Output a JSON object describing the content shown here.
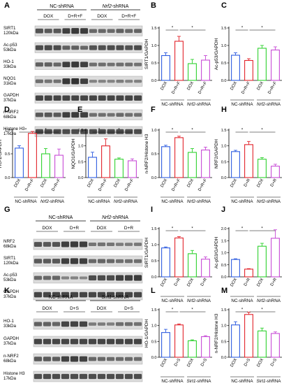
{
  "figure": {
    "colors": {
      "ctrl": "#2f5de0",
      "treat": "#e2222a",
      "ctrlKD": "#2ed12e",
      "treatKD": "#c74ad6",
      "axis": "#000000",
      "band": "#1a1a1a"
    },
    "blots": [
      {
        "panel": "A",
        "groups": [
          {
            "label": "NC-shRNA",
            "conds": [
              "DOX",
              "D+R+F"
            ]
          },
          {
            "label": "Nrf2-shRNA",
            "conds": [
              "DOX",
              "D+R+F"
            ]
          }
        ],
        "rows": [
          {
            "protein": "SIRT1",
            "size": "120kDa",
            "levels": [
              0.65,
              0.6,
              0.62,
              0.8,
              0.85,
              0.82,
              0.5,
              0.5,
              0.48,
              0.55,
              0.5,
              0.52
            ]
          },
          {
            "protein": "Ac-p53",
            "size": "53kDa",
            "levels": [
              0.7,
              0.72,
              0.7,
              0.55,
              0.55,
              0.5,
              0.65,
              0.68,
              0.7,
              0.7,
              0.66,
              0.7
            ]
          },
          {
            "protein": "HO-1",
            "size": "33kDa",
            "levels": [
              0.55,
              0.55,
              0.5,
              0.8,
              0.85,
              0.8,
              0.45,
              0.45,
              0.42,
              0.45,
              0.45,
              0.42
            ]
          },
          {
            "protein": "NQO1",
            "size": "31kDa",
            "levels": [
              0.45,
              0.4,
              0.42,
              0.85,
              0.9,
              0.8,
              0.3,
              0.3,
              0.3,
              0.35,
              0.3,
              0.32
            ]
          },
          {
            "protein": "GAPDH",
            "size": "37kDa",
            "levels": [
              0.75,
              0.75,
              0.75,
              0.75,
              0.75,
              0.75,
              0.75,
              0.75,
              0.75,
              0.75,
              0.75,
              0.75
            ]
          },
          {
            "protein": "n-NRF2",
            "size": "68kDa",
            "levels": [
              0.6,
              0.62,
              0.6,
              0.8,
              0.82,
              0.8,
              0.45,
              0.45,
              0.42,
              0.48,
              0.45,
              0.45
            ]
          },
          {
            "protein": "Histone H3",
            "size": "17kDa",
            "levels": [
              0.7,
              0.7,
              0.7,
              0.7,
              0.7,
              0.7,
              0.7,
              0.7,
              0.7,
              0.7,
              0.7,
              0.7
            ]
          }
        ]
      },
      {
        "panel": "G",
        "groups": [
          {
            "label": "NC-shRNA",
            "conds": [
              "DOX",
              "D+R"
            ]
          },
          {
            "label": "Nrf2-shRNA",
            "conds": [
              "DOX",
              "D+R"
            ]
          }
        ],
        "rows": [
          {
            "protein": "NRF2",
            "size": "68kDa",
            "levels": [
              0.65,
              0.62,
              0.65,
              0.8,
              0.82,
              0.8,
              0.4,
              0.42,
              0.4,
              0.35,
              0.35,
              0.38
            ]
          },
          {
            "protein": "SIRT1",
            "size": "120kDa",
            "levels": [
              0.6,
              0.6,
              0.62,
              0.8,
              0.82,
              0.8,
              0.5,
              0.52,
              0.5,
              0.45,
              0.45,
              0.45
            ]
          },
          {
            "protein": "Ac-p53",
            "size": "53kDa",
            "levels": [
              0.5,
              0.5,
              0.52,
              0.3,
              0.3,
              0.28,
              0.7,
              0.72,
              0.72,
              0.8,
              0.8,
              0.82
            ]
          },
          {
            "protein": "GAPDH",
            "size": "37kDa",
            "levels": [
              0.75,
              0.75,
              0.75,
              0.75,
              0.75,
              0.75,
              0.75,
              0.75,
              0.75,
              0.75,
              0.75,
              0.75
            ]
          }
        ]
      },
      {
        "panel": "K",
        "groups": [
          {
            "label": "NC-shRNA",
            "conds": [
              "DOX",
              "D+S"
            ]
          },
          {
            "label": "Sirt1-shRNA",
            "conds": [
              "DOX",
              "D+S"
            ]
          }
        ],
        "rows": [
          {
            "protein": "HO-1",
            "size": "33kDa",
            "levels": [
              0.55,
              0.55,
              0.52,
              0.75,
              0.78,
              0.75,
              0.35,
              0.35,
              0.32,
              0.45,
              0.45,
              0.42
            ]
          },
          {
            "protein": "GAPDH",
            "size": "37kDa",
            "levels": [
              0.75,
              0.75,
              0.75,
              0.75,
              0.75,
              0.75,
              0.75,
              0.75,
              0.75,
              0.75,
              0.75,
              0.75
            ]
          },
          {
            "protein": "n-NRF2",
            "size": "68kDa",
            "levels": [
              0.6,
              0.6,
              0.58,
              0.78,
              0.8,
              0.78,
              0.5,
              0.5,
              0.48,
              0.48,
              0.48,
              0.46
            ]
          },
          {
            "protein": "Histone H3",
            "size": "17kDa",
            "levels": [
              0.7,
              0.7,
              0.7,
              0.7,
              0.7,
              0.7,
              0.7,
              0.7,
              0.7,
              0.7,
              0.7,
              0.7
            ]
          }
        ]
      }
    ]
  },
  "chart_data": [
    {
      "panel": "B",
      "type": "bar",
      "ylabel": "SIRT1/GAPDH",
      "ylim": [
        0,
        1.5
      ],
      "yticks": [
        0.0,
        0.5,
        1.0,
        1.5
      ],
      "categories": [
        "DOX",
        "D+R+F",
        "DOX",
        "D+R+F"
      ],
      "values": [
        0.71,
        1.12,
        0.48,
        0.58
      ],
      "errors": [
        0.08,
        0.14,
        0.12,
        0.13
      ],
      "groups": [
        "NC-shRNA",
        "Nrf2-shRNA"
      ],
      "sig": [
        "*",
        "*"
      ]
    },
    {
      "panel": "C",
      "type": "bar",
      "ylabel": "Ac-p53/GAPDH",
      "ylim": [
        0,
        1.5
      ],
      "yticks": [
        0.0,
        0.5,
        1.0,
        1.5
      ],
      "categories": [
        "DOX",
        "D+R+F",
        "DOX",
        "D+R+F"
      ],
      "values": [
        0.72,
        0.57,
        0.92,
        0.87
      ],
      "errors": [
        0.07,
        0.05,
        0.08,
        0.09
      ],
      "groups": [
        "NC-shRNA",
        "Nrf2-shRNA"
      ],
      "sig": [
        "*",
        "*"
      ]
    },
    {
      "panel": "D",
      "type": "bar",
      "ylabel": "HO-1/GAPDH",
      "ylim": [
        0,
        1.0
      ],
      "yticks": [
        0.0,
        0.5,
        1.0
      ],
      "categories": [
        "DOX",
        "D+R+F",
        "DOX",
        "D+R+F"
      ],
      "values": [
        0.62,
        0.93,
        0.5,
        0.47
      ],
      "errors": [
        0.05,
        0.04,
        0.11,
        0.13
      ],
      "groups": [
        "NC-shRNA",
        "Nrf2-shRNA"
      ],
      "sig": [
        "*",
        "*"
      ]
    },
    {
      "panel": "E",
      "type": "bar",
      "ylabel": "NQO1/GAPDH",
      "ylim": [
        0,
        1.5
      ],
      "yticks": [
        0.0,
        0.5,
        1.0,
        1.5
      ],
      "categories": [
        "DOX",
        "D+R+F",
        "DOX",
        "D+R+F"
      ],
      "values": [
        0.64,
        1.0,
        0.58,
        0.53
      ],
      "errors": [
        0.16,
        0.22,
        0.04,
        0.06
      ],
      "groups": [
        "NC-shRNA",
        "Nrf2-shRNA"
      ],
      "sig": [
        "*",
        "*"
      ]
    },
    {
      "panel": "F",
      "type": "bar",
      "ylabel": "n-NRF2/Histone H3",
      "ylim": [
        0,
        1.0
      ],
      "yticks": [
        0.0,
        0.5,
        1.0
      ],
      "categories": [
        "DOX",
        "D+R+F",
        "DOX",
        "D+R+F"
      ],
      "values": [
        0.65,
        0.84,
        0.53,
        0.58
      ],
      "errors": [
        0.03,
        0.03,
        0.08,
        0.06
      ],
      "groups": [
        "NC-shRNA",
        "Nrf2-shRNA"
      ],
      "sig": [
        "*",
        "*"
      ]
    },
    {
      "panel": "H",
      "type": "bar",
      "ylabel": "NRF2/GAPDH",
      "ylim": [
        0,
        1.5
      ],
      "yticks": [
        0.0,
        0.5,
        1.0,
        1.5
      ],
      "categories": [
        "DOX",
        "D+R",
        "DOX",
        "D+R"
      ],
      "values": [
        0.82,
        1.04,
        0.58,
        0.36
      ],
      "errors": [
        0.04,
        0.1,
        0.05,
        0.06
      ],
      "groups": [
        "NC-shRNA",
        "Nrf2-shRNA"
      ],
      "sig": [
        "*",
        "*"
      ]
    },
    {
      "panel": "I",
      "type": "bar",
      "ylabel": "SIRT1/GAPDH",
      "ylim": [
        0,
        1.5
      ],
      "yticks": [
        0.0,
        0.5,
        1.0,
        1.5
      ],
      "categories": [
        "DOX",
        "D+R",
        "DOX",
        "D+R"
      ],
      "values": [
        0.9,
        1.21,
        0.72,
        0.55
      ],
      "errors": [
        0.03,
        0.04,
        0.1,
        0.07
      ],
      "groups": [
        "NC-shRNA",
        "Nrf2-shRNA"
      ],
      "sig": [
        "*",
        "*"
      ]
    },
    {
      "panel": "J",
      "type": "bar",
      "ylabel": "Ac-p53/GAPDH",
      "ylim": [
        0,
        2.0
      ],
      "yticks": [
        0.0,
        0.5,
        1.0,
        1.5,
        2.0
      ],
      "categories": [
        "DOX",
        "D+R",
        "DOX",
        "D+R"
      ],
      "values": [
        0.72,
        0.32,
        1.27,
        1.6
      ],
      "errors": [
        0.03,
        0.02,
        0.12,
        0.35
      ],
      "groups": [
        "NC-shRNA",
        "Nrf2-shRNA"
      ],
      "sig": [
        "*",
        "*"
      ]
    },
    {
      "panel": "L",
      "type": "bar",
      "ylabel": "HO-1/GAPDH",
      "ylim": [
        0,
        1.5
      ],
      "yticks": [
        0.0,
        0.5,
        1.0,
        1.5
      ],
      "categories": [
        "DOX",
        "D+S",
        "DOX",
        "D+S"
      ],
      "values": [
        0.78,
        1.02,
        0.52,
        0.65
      ],
      "errors": [
        0.1,
        0.03,
        0.03,
        0.03
      ],
      "groups": [
        "NC-shRNA",
        "Sirt1-shRNA"
      ],
      "sig": [
        "*",
        "*"
      ]
    },
    {
      "panel": "M",
      "type": "bar",
      "ylabel": "n-NRF2/Histone H3",
      "ylim": [
        0,
        1.5
      ],
      "yticks": [
        0.0,
        0.5,
        1.0,
        1.5
      ],
      "categories": [
        "DOX",
        "D+S",
        "DOX",
        "D+S"
      ],
      "values": [
        1.02,
        1.35,
        0.83,
        0.75
      ],
      "errors": [
        0.1,
        0.07,
        0.09,
        0.05
      ],
      "groups": [
        "NC-shRNA",
        "Sirt1-shRNA"
      ],
      "sig": [
        "*",
        "*"
      ]
    }
  ]
}
